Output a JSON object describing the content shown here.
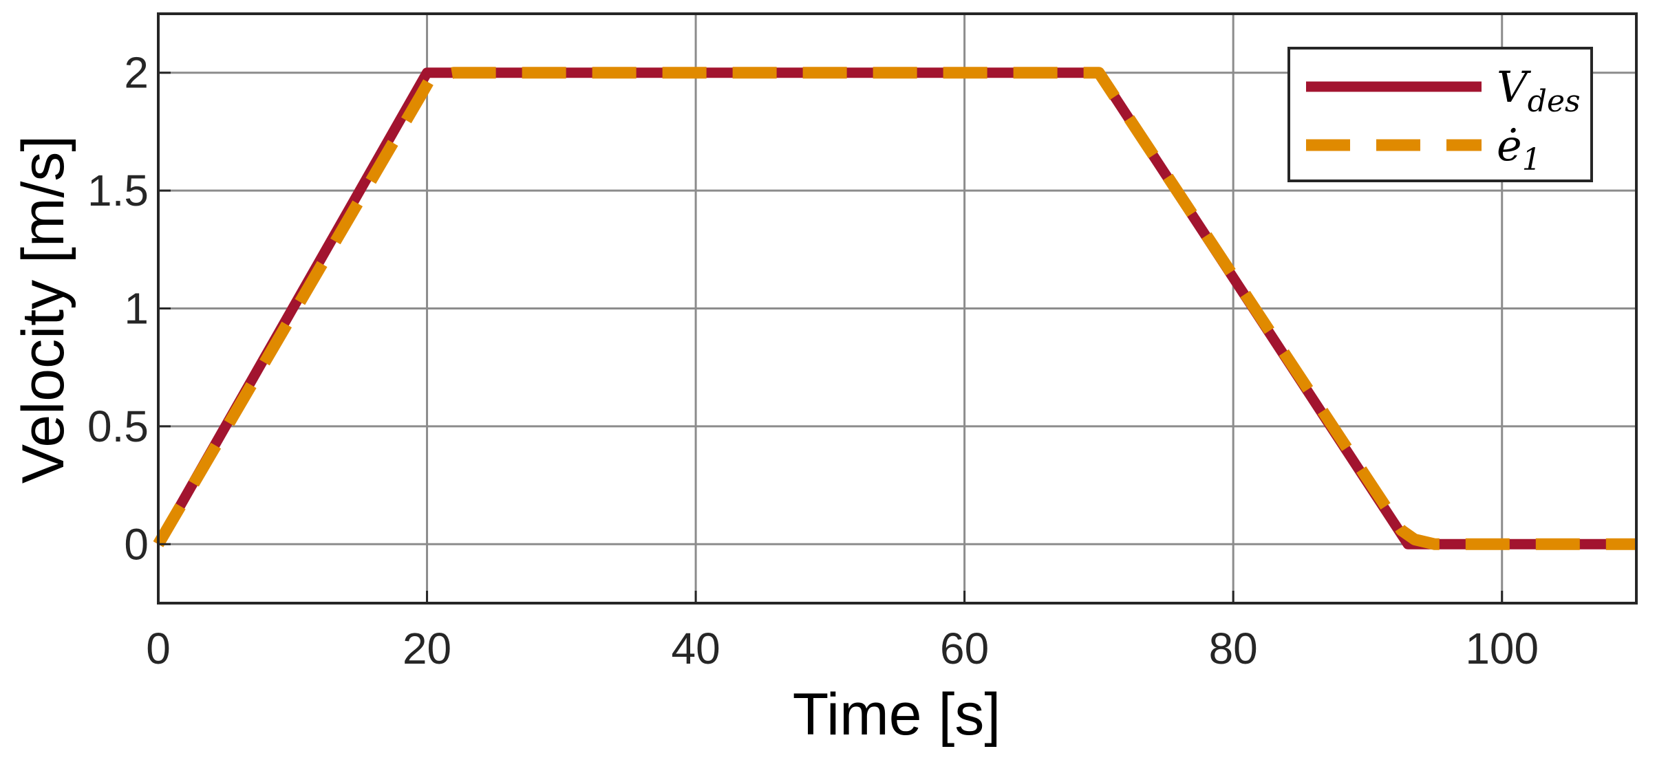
{
  "chart_data": {
    "type": "line",
    "xlabel": "Time [s]",
    "ylabel": "Velocity [m/s]",
    "xlim": [
      0,
      110
    ],
    "ylim": [
      -0.25,
      2.25
    ],
    "xticks": [
      0,
      20,
      40,
      60,
      80,
      100
    ],
    "yticks": [
      0,
      0.5,
      1,
      1.5,
      2
    ],
    "xtick_labels": [
      "0",
      "20",
      "40",
      "60",
      "80",
      "100"
    ],
    "ytick_labels": [
      "0",
      "0.5",
      "1",
      "1.5",
      "2"
    ],
    "grid": true,
    "legend_position": "top-right",
    "series": [
      {
        "name": "V_des",
        "legend_main": "V",
        "legend_sub": "des",
        "style": "solid",
        "color": "#A2142F",
        "x": [
          0,
          20,
          70,
          93,
          110
        ],
        "y": [
          0,
          2,
          2,
          0,
          0
        ]
      },
      {
        "name": "ė_1",
        "legend_main": "ė",
        "legend_sub": "1",
        "style": "dashed",
        "color": "#E08A00",
        "x": [
          0,
          19.5,
          20.2,
          21,
          22,
          70,
          92.5,
          93.5,
          95,
          110
        ],
        "y": [
          0,
          1.9,
          1.97,
          1.99,
          2,
          2,
          0.06,
          0.02,
          0,
          0
        ]
      }
    ]
  }
}
